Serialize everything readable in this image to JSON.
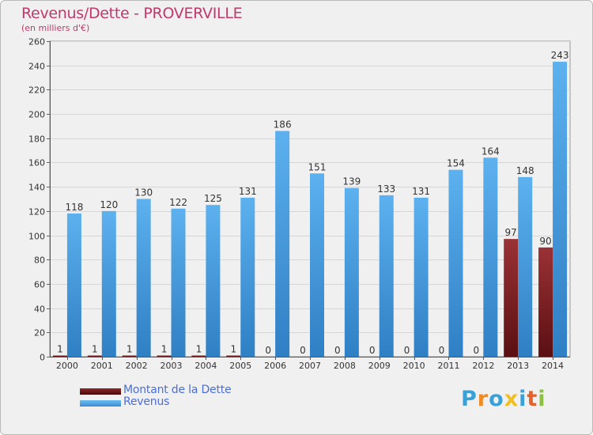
{
  "title": "Revenus/Dette - PROVERVILLE",
  "subtitle": "(en milliers d'€)",
  "legend": {
    "dette": "Montant de la Dette",
    "revenus": "Revenus"
  },
  "logo": {
    "letters": [
      "P",
      "r",
      "o",
      "x",
      "i",
      "t",
      "i"
    ],
    "colors": [
      "#3aa0d8",
      "#f08a24",
      "#3aa0d8",
      "#f0c020",
      "#3aa0d8",
      "#e8602a",
      "#8cc040"
    ]
  },
  "colors": {
    "dette": "#8e2a2c",
    "revenus": "#4fa8e6",
    "title": "#c0396b",
    "legend_text": "#4d6ed2"
  },
  "chart_data": {
    "type": "bar",
    "title": "Revenus/Dette - PROVERVILLE",
    "subtitle": "(en milliers d'€)",
    "categories": [
      "2000",
      "2001",
      "2002",
      "2003",
      "2004",
      "2005",
      "2006",
      "2007",
      "2008",
      "2009",
      "2010",
      "2011",
      "2012",
      "2013",
      "2014"
    ],
    "series": [
      {
        "name": "Montant de la Dette",
        "values": [
          1,
          1,
          1,
          1,
          1,
          1,
          0,
          0,
          0,
          0,
          0,
          0,
          0,
          97,
          90
        ]
      },
      {
        "name": "Revenus",
        "values": [
          118,
          120,
          130,
          122,
          125,
          131,
          186,
          151,
          139,
          133,
          131,
          154,
          164,
          148,
          243
        ]
      }
    ],
    "ylim": [
      0,
      260
    ],
    "yticks": [
      0,
      20,
      40,
      60,
      80,
      100,
      120,
      140,
      160,
      180,
      200,
      220,
      240,
      260
    ],
    "grid": true,
    "legend_position": "bottom-left"
  }
}
